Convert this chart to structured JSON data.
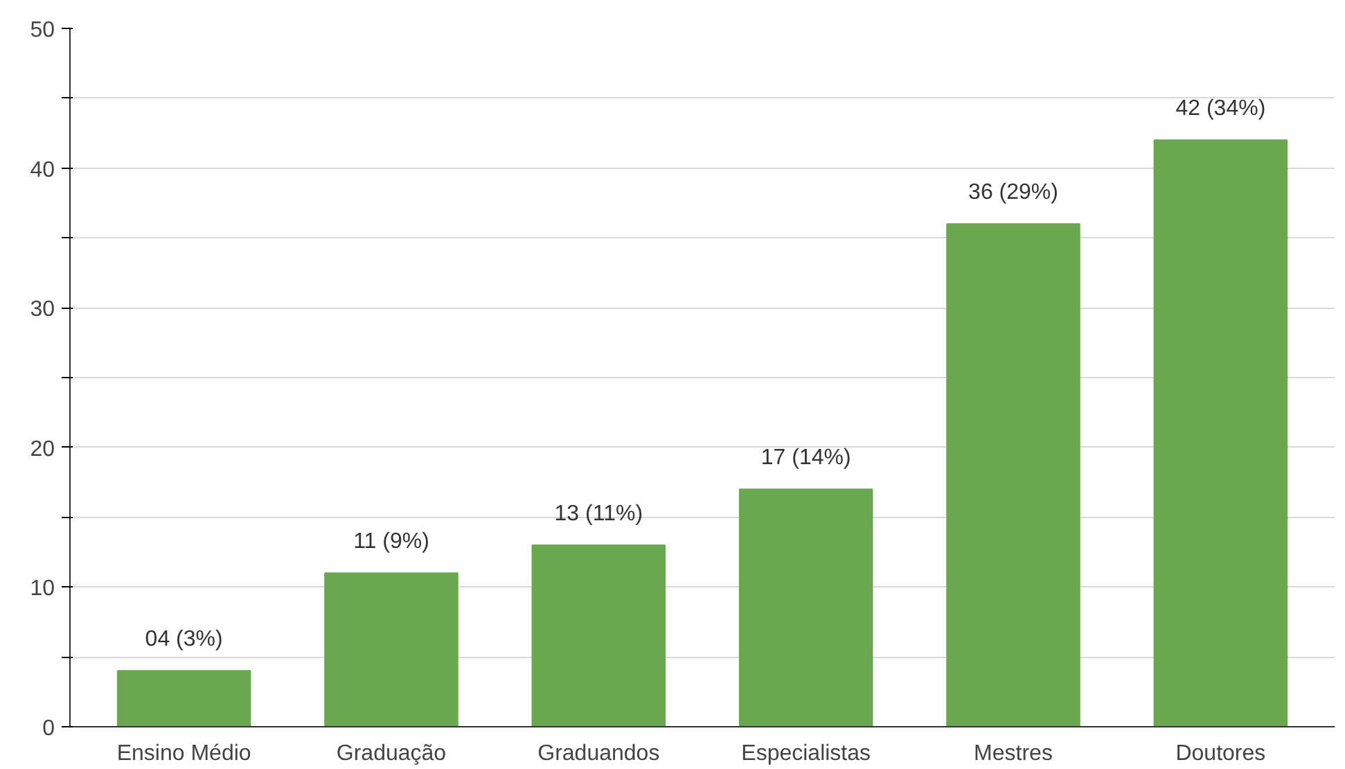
{
  "chart_data": {
    "type": "bar",
    "categories": [
      "Ensino Médio",
      "Graduação",
      "Graduandos",
      "Especialistas",
      "Mestres",
      "Doutores"
    ],
    "values": [
      4,
      11,
      13,
      17,
      36,
      42
    ],
    "value_labels": [
      "04 (3%)",
      "11 (9%)",
      "13 (11%)",
      "17 (14%)",
      "36 (29%)",
      "42 (34%)"
    ],
    "color": "#6aa84f",
    "ylim": [
      0,
      50
    ],
    "yticks": [
      0,
      {
        "value": 5,
        "label": null
      },
      10,
      {
        "value": 15,
        "label": null
      },
      20,
      {
        "value": 25,
        "label": null
      },
      30,
      {
        "value": 35,
        "label": null
      },
      40,
      {
        "value": 45,
        "label": null
      },
      50
    ],
    "grid": "y"
  }
}
